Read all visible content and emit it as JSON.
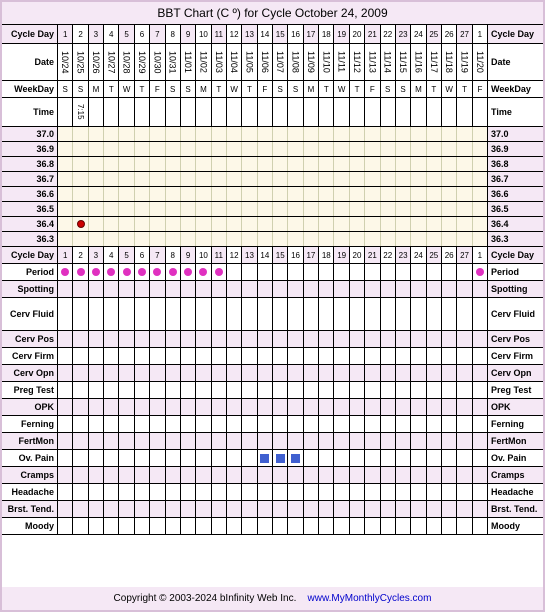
{
  "title": "BBT Chart (C º) for Cycle October 24, 2009",
  "labels": {
    "cycleDay": "Cycle Day",
    "date": "Date",
    "weekday": "WeekDay",
    "time": "Time",
    "period": "Period",
    "spotting": "Spotting",
    "cervFluid": "Cerv Fluid",
    "cervPos": "Cerv Pos",
    "cervFirm": "Cerv Firm",
    "cervOpn": "Cerv Opn",
    "pregTest": "Preg Test",
    "opk": "OPK",
    "ferning": "Ferning",
    "fertMon": "FertMon",
    "ovPain": "Ov. Pain",
    "cramps": "Cramps",
    "headache": "Headache",
    "brstTend": "Brst. Tend.",
    "moody": "Moody"
  },
  "cycleDays": [
    "1",
    "2",
    "3",
    "4",
    "5",
    "6",
    "7",
    "8",
    "9",
    "10",
    "11",
    "12",
    "13",
    "14",
    "15",
    "16",
    "17",
    "18",
    "19",
    "20",
    "21",
    "22",
    "23",
    "24",
    "25",
    "26",
    "27",
    "1"
  ],
  "dates": [
    "10/24",
    "10/25",
    "10/26",
    "10/27",
    "10/28",
    "10/29",
    "10/30",
    "10/31",
    "11/01",
    "11/02",
    "11/03",
    "11/04",
    "11/05",
    "11/06",
    "11/07",
    "11/08",
    "11/09",
    "11/10",
    "11/11",
    "11/12",
    "11/13",
    "11/14",
    "11/15",
    "11/16",
    "11/17",
    "11/18",
    "11/19",
    "11/20"
  ],
  "weekdays": [
    "S",
    "S",
    "M",
    "T",
    "W",
    "T",
    "F",
    "S",
    "S",
    "M",
    "T",
    "W",
    "T",
    "F",
    "S",
    "S",
    "M",
    "T",
    "W",
    "T",
    "F",
    "S",
    "S",
    "M",
    "T",
    "W",
    "T",
    "F"
  ],
  "times": [
    "",
    "7:15",
    "",
    "",
    "",
    "",
    "",
    "",
    "",
    "",
    "",
    "",
    "",
    "",
    "",
    "",
    "",
    "",
    "",
    "",
    "",
    "",
    "",
    "",
    "",
    "",
    "",
    ""
  ],
  "tempScale": [
    "37.0",
    "36.9",
    "36.8",
    "36.7",
    "36.6",
    "36.5",
    "36.4",
    "36.3"
  ],
  "tempPoint": {
    "day": 2,
    "temp": "36.4"
  },
  "periodDays": [
    1,
    2,
    3,
    4,
    5,
    6,
    7,
    8,
    9,
    10,
    11,
    28
  ],
  "ovPainDays": [
    14,
    15,
    16
  ],
  "colors": {
    "lavender": "#f5e8f5",
    "cream": "#fdf8e8",
    "white": "#ffffff",
    "magenta": "#e030c0",
    "red": "#cc0000",
    "blue": "#4060d0",
    "border": "#d8bfd8",
    "black": "#000000"
  },
  "footer": {
    "copyright": "Copyright © 2003-2024 bInfinity Web Inc.",
    "link": "www.MyMonthlyCycles.com"
  }
}
